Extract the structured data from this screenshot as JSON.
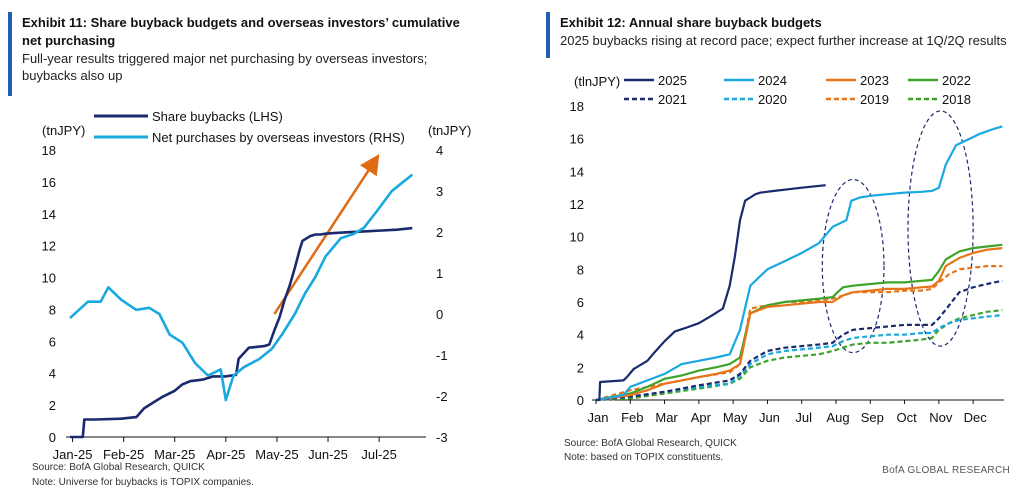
{
  "chart_data": [
    {
      "type": "line",
      "exhibit_title": "Exhibit 11: Share buyback budgets and overseas investors’ cumulative net purchasing",
      "subtitle": "Full-year results triggered major net purchasing by overseas investors; buybacks also up",
      "left_unit": "(tnJPY)",
      "right_unit": "(tnJPY)",
      "left_ylim": [
        0,
        18
      ],
      "right_ylim": [
        -3,
        4
      ],
      "left_ticks": [
        "0",
        "2",
        "4",
        "6",
        "8",
        "10",
        "12",
        "14",
        "16",
        "18"
      ],
      "right_ticks": [
        "-3",
        "-2",
        "-1",
        "0",
        "1",
        "2",
        "3",
        "4"
      ],
      "x_ticks": [
        "Jan-25",
        "Feb-25",
        "Mar-25",
        "Apr-25",
        "May-25",
        "Jun-25",
        "Jul-25"
      ],
      "series": [
        {
          "name": "Share buybacks (LHS)",
          "color": "#1a2a6c",
          "axis": "left",
          "x": [
            0,
            0.25,
            0.28,
            0.5,
            1.0,
            1.3,
            1.45,
            1.55,
            1.65,
            1.8,
            2.05,
            2.2,
            2.35,
            2.6,
            2.8,
            3.05,
            3.25,
            3.3,
            3.5,
            3.8,
            3.9,
            4.0,
            4.1,
            4.2,
            4.3,
            4.4,
            4.5,
            4.55,
            4.65,
            4.7,
            4.8,
            4.9,
            5.0,
            5.2,
            5.5,
            5.8,
            6.1,
            6.4,
            6.7
          ],
          "values": [
            0,
            0,
            1.1,
            1.1,
            1.15,
            1.25,
            1.8,
            2.0,
            2.2,
            2.5,
            2.9,
            3.3,
            3.5,
            3.6,
            3.8,
            3.8,
            3.9,
            4.9,
            5.6,
            5.7,
            5.8,
            6.7,
            7.5,
            8.6,
            9.5,
            10.6,
            11.8,
            12.3,
            12.5,
            12.6,
            12.7,
            12.7,
            12.75,
            12.8,
            12.85,
            12.9,
            12.95,
            13.0,
            13.1
          ]
        },
        {
          "name": "Net purchases by overseas investors (RHS)",
          "color": "#19a8e0",
          "axis": "right",
          "x": [
            0,
            0.35,
            0.6,
            0.75,
            1.0,
            1.3,
            1.55,
            1.75,
            1.95,
            2.2,
            2.45,
            2.7,
            2.95,
            3.05,
            3.2,
            3.4,
            3.7,
            3.95,
            4.15,
            4.4,
            4.6,
            4.8,
            5.0,
            5.3,
            5.55,
            5.75,
            6.0,
            6.3,
            6.5,
            6.7
          ],
          "values": [
            -0.1,
            0.3,
            0.3,
            0.65,
            0.35,
            0.1,
            0.15,
            0.0,
            -0.5,
            -0.7,
            -1.2,
            -1.5,
            -1.35,
            -2.1,
            -1.5,
            -1.3,
            -1.1,
            -0.85,
            -0.5,
            0.0,
            0.5,
            0.9,
            1.4,
            1.85,
            1.95,
            2.1,
            2.5,
            3.0,
            3.2,
            3.4
          ]
        }
      ],
      "arrow": {
        "color": "#e06a12",
        "from": [
          4.0,
          0.0
        ],
        "to": [
          6.0,
          3.8
        ]
      },
      "source": "Source: BofA Global Research, QUICK",
      "note": "Note: Universe for buybacks is TOPIX companies."
    },
    {
      "type": "line",
      "exhibit_title": "Exhibit 12: Annual share buyback budgets",
      "subtitle": "2025 buybacks rising at record pace; expect further increase at 1Q/2Q results",
      "unit": "(tlnJPY)",
      "ylim": [
        0,
        18
      ],
      "y_ticks": [
        "0",
        "2",
        "4",
        "6",
        "8",
        "10",
        "12",
        "14",
        "16",
        "18"
      ],
      "x_ticks": [
        "Jan",
        "Feb",
        "Mar",
        "Apr",
        "May",
        "Jun",
        "Jul",
        "Aug",
        "Sep",
        "Oct",
        "Nov",
        "Dec"
      ],
      "series": [
        {
          "name": "2025",
          "color": "#1a2a6c",
          "dash": "solid",
          "x": [
            0,
            0.1,
            0.12,
            0.8,
            0.9,
            1.1,
            1.5,
            1.7,
            2.0,
            2.3,
            2.6,
            3.0,
            3.4,
            3.7,
            3.9,
            4.05,
            4.2,
            4.35,
            4.5,
            4.65,
            4.8,
            5.2,
            5.6,
            6.0,
            6.7
          ],
          "values": [
            0,
            0,
            1.1,
            1.2,
            1.4,
            1.9,
            2.4,
            2.9,
            3.6,
            4.2,
            4.4,
            4.7,
            5.2,
            5.6,
            7.0,
            8.8,
            11.0,
            12.2,
            12.4,
            12.6,
            12.7,
            12.8,
            12.9,
            13.0,
            13.15
          ]
        },
        {
          "name": "2024",
          "color": "#19a8e0",
          "dash": "solid",
          "x": [
            0,
            0.8,
            1.0,
            1.5,
            2.0,
            2.5,
            3.0,
            3.5,
            3.9,
            4.2,
            4.5,
            5.0,
            5.5,
            6.0,
            6.5,
            6.9,
            7.3,
            7.45,
            7.7,
            8.0,
            8.5,
            9.0,
            9.5,
            9.8,
            10.0,
            10.2,
            10.5,
            10.9,
            11.2,
            11.6,
            11.85
          ],
          "values": [
            0,
            0.3,
            0.8,
            1.2,
            1.6,
            2.2,
            2.4,
            2.6,
            2.8,
            4.3,
            7.0,
            8.0,
            8.5,
            9.0,
            9.6,
            10.6,
            11.0,
            12.2,
            12.4,
            12.5,
            12.6,
            12.7,
            12.75,
            12.8,
            13.0,
            14.4,
            15.6,
            16.0,
            16.3,
            16.6,
            16.75
          ]
        },
        {
          "name": "2023",
          "color": "#e8741a",
          "dash": "solid",
          "x": [
            0,
            1.0,
            1.5,
            2.0,
            2.5,
            3.0,
            3.5,
            3.9,
            4.2,
            4.5,
            5.0,
            5.5,
            6.0,
            6.5,
            6.9,
            7.2,
            7.5,
            8.0,
            8.5,
            9.0,
            9.5,
            9.8,
            10.0,
            10.2,
            10.6,
            11.0,
            11.4,
            11.85
          ],
          "values": [
            0,
            0.3,
            0.6,
            1.0,
            1.2,
            1.4,
            1.6,
            1.8,
            2.2,
            5.3,
            5.7,
            5.8,
            5.9,
            6.0,
            6.0,
            6.4,
            6.6,
            6.7,
            6.8,
            6.8,
            6.9,
            6.95,
            7.3,
            8.2,
            8.7,
            9.0,
            9.2,
            9.3
          ]
        },
        {
          "name": "2022",
          "color": "#3da32a",
          "dash": "solid",
          "x": [
            0,
            1.0,
            1.5,
            2.0,
            2.5,
            3.0,
            3.5,
            3.9,
            4.2,
            4.5,
            5.0,
            5.5,
            6.0,
            6.5,
            6.9,
            7.2,
            7.5,
            8.0,
            8.5,
            9.0,
            9.5,
            9.8,
            10.0,
            10.2,
            10.6,
            11.0,
            11.4,
            11.85
          ],
          "values": [
            0,
            0.4,
            0.8,
            1.3,
            1.5,
            1.8,
            2.0,
            2.2,
            2.6,
            5.3,
            5.8,
            6.0,
            6.1,
            6.2,
            6.3,
            6.9,
            7.0,
            7.1,
            7.2,
            7.2,
            7.3,
            7.35,
            7.9,
            8.6,
            9.1,
            9.3,
            9.4,
            9.5
          ]
        },
        {
          "name": "2021",
          "color": "#1a2a6c",
          "dash": "dashed",
          "x": [
            0,
            1.0,
            2.0,
            3.0,
            3.9,
            4.2,
            4.5,
            5.0,
            5.5,
            6.0,
            6.5,
            6.9,
            7.2,
            7.5,
            8.0,
            8.5,
            9.0,
            9.5,
            9.8,
            10.0,
            10.3,
            10.6,
            11.0,
            11.4,
            11.85
          ],
          "values": [
            0,
            0.2,
            0.5,
            0.9,
            1.2,
            1.6,
            2.4,
            3.0,
            3.2,
            3.3,
            3.4,
            3.5,
            4.0,
            4.3,
            4.4,
            4.5,
            4.6,
            4.6,
            4.6,
            5.0,
            5.8,
            6.6,
            6.9,
            7.1,
            7.3
          ]
        },
        {
          "name": "2020",
          "color": "#19a8e0",
          "dash": "dashed",
          "x": [
            0,
            1.0,
            2.0,
            3.0,
            3.9,
            4.2,
            4.5,
            5.0,
            5.5,
            6.0,
            6.5,
            6.9,
            7.2,
            7.5,
            8.0,
            8.5,
            9.0,
            9.5,
            9.8,
            10.0,
            10.3,
            10.6,
            11.0,
            11.4,
            11.85
          ],
          "values": [
            0,
            0.2,
            0.5,
            0.8,
            1.0,
            1.5,
            2.2,
            2.8,
            3.0,
            3.1,
            3.2,
            3.3,
            3.6,
            3.8,
            3.9,
            4.0,
            4.0,
            4.1,
            4.1,
            4.4,
            4.7,
            4.9,
            5.0,
            5.1,
            5.2
          ]
        },
        {
          "name": "2019",
          "color": "#e8741a",
          "dash": "dashed",
          "x": [
            0,
            1.0,
            2.0,
            3.0,
            3.9,
            4.2,
            4.5,
            5.0,
            5.5,
            6.0,
            6.5,
            6.9,
            7.2,
            7.5,
            8.0,
            8.5,
            9.0,
            9.5,
            9.8,
            10.0,
            10.3,
            10.6,
            11.0,
            11.4,
            11.85
          ],
          "values": [
            0,
            0.6,
            1.0,
            1.4,
            1.7,
            2.2,
            5.6,
            5.8,
            6.0,
            6.0,
            6.1,
            6.2,
            6.4,
            6.6,
            6.6,
            6.6,
            6.7,
            6.7,
            6.8,
            7.2,
            7.7,
            8.0,
            8.1,
            8.2,
            8.2
          ]
        },
        {
          "name": "2018",
          "color": "#3da32a",
          "dash": "dashed",
          "x": [
            0,
            1.0,
            2.0,
            3.0,
            3.9,
            4.2,
            4.5,
            5.0,
            5.5,
            6.0,
            6.5,
            6.9,
            7.2,
            7.5,
            8.0,
            8.5,
            9.0,
            9.5,
            9.8,
            10.0,
            10.3,
            10.6,
            11.0,
            11.4,
            11.85
          ],
          "values": [
            0,
            0.1,
            0.4,
            0.7,
            1.0,
            1.3,
            2.0,
            2.4,
            2.6,
            2.7,
            2.8,
            3.0,
            3.2,
            3.4,
            3.5,
            3.5,
            3.6,
            3.7,
            3.8,
            4.3,
            4.7,
            5.0,
            5.2,
            5.4,
            5.5
          ]
        }
      ],
      "ellipses": [
        {
          "cx": 7.5,
          "cy": 8.2,
          "rx": 0.9,
          "ry": 5.3
        },
        {
          "cx": 10.05,
          "cy": 10.5,
          "rx": 0.95,
          "ry": 7.2
        }
      ],
      "source": "Source: BofA Global Research, QUICK",
      "note": "Note: based on TOPIX constituents."
    }
  ],
  "brand": "BofA GLOBAL RESEARCH"
}
